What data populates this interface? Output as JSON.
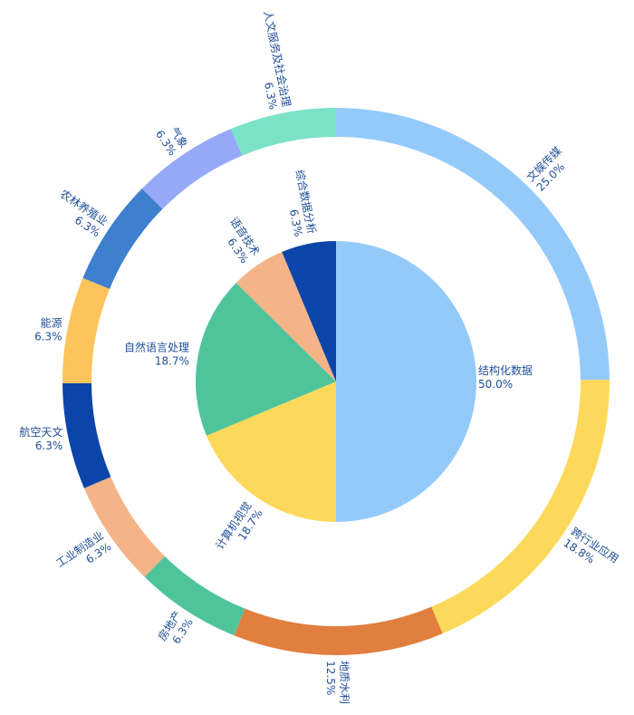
{
  "colors": {
    "light_blue": "#94cafa",
    "yellow": "#fcd95a",
    "orange": "#e07f3e",
    "green": "#4fc49b",
    "peach": "#f4b488",
    "dark_blue": "#0c45aa",
    "mid_blue": "#3f7fcf",
    "purple_blue": "#95a9f7",
    "mint": "#7be2c8",
    "label": "#1f4e96"
  },
  "chart_data": {
    "type": "pie",
    "title": "",
    "rings": [
      {
        "name": "",
        "slices": [
          {
            "label": "结构化数据",
            "value": 50.0,
            "pct": "50.0%",
            "color": "#94cafa"
          },
          {
            "label": "计算机视觉",
            "value": 18.7,
            "pct": "18.7%",
            "color": "#fcd95a"
          },
          {
            "label": "自然语言处理",
            "value": 18.7,
            "pct": "18.7%",
            "color": "#4fc49b"
          },
          {
            "label": "语音技术",
            "value": 6.3,
            "pct": "6.3%",
            "color": "#f4b488"
          },
          {
            "label": "综合数据分析",
            "value": 6.3,
            "pct": "6.3%",
            "color": "#0c45aa"
          }
        ]
      },
      {
        "name": "",
        "slices": [
          {
            "label": "文娱传媒",
            "value": 25.0,
            "pct": "25.0%",
            "color": "#94cafa"
          },
          {
            "label": "跨行业应用",
            "value": 18.8,
            "pct": "18.8%",
            "color": "#fcd95a"
          },
          {
            "label": "地质水利",
            "value": 12.5,
            "pct": "12.5%",
            "color": "#e07f3e"
          },
          {
            "label": "房地产",
            "value": 6.3,
            "pct": "6.3%",
            "color": "#4fc49b"
          },
          {
            "label": "工业制造业",
            "value": 6.3,
            "pct": "6.3%",
            "color": "#f4b488"
          },
          {
            "label": "航空天文",
            "value": 6.3,
            "pct": "6.3%",
            "color": "#0c45aa"
          },
          {
            "label": "能源",
            "value": 6.3,
            "pct": "6.3%",
            "color": "#fcc45a"
          },
          {
            "label": "农林养殖业",
            "value": 6.3,
            "pct": "6.3%",
            "color": "#3f7fcf"
          },
          {
            "label": "气象",
            "value": 6.3,
            "pct": "6.3%",
            "color": "#95a9f7"
          },
          {
            "label": "人文服务及社会治理",
            "value": 6.3,
            "pct": "6.3%",
            "color": "#7be2c8"
          }
        ]
      }
    ],
    "legend": "none"
  }
}
